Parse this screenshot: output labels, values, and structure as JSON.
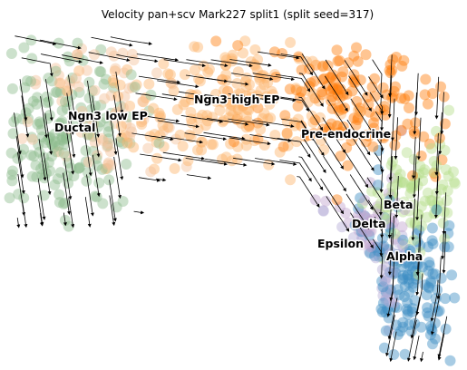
{
  "chart_data": {
    "type": "scatter",
    "title": "Velocity pan+scv Mark227 split1 (split seed=317)",
    "xlabel": "",
    "ylabel": "",
    "axes_visible": false,
    "legend": "on-data",
    "overlay": "velocity streamlines",
    "series": [
      {
        "name": "Ductal",
        "color": "#8fbc8f"
      },
      {
        "name": "Ngn3 low EP",
        "color": "#f4c19a"
      },
      {
        "name": "Ngn3 high EP",
        "color": "#fdb46b"
      },
      {
        "name": "Pre-endocrine",
        "color": "#ff7f0e"
      },
      {
        "name": "Beta",
        "color": "#b5de8c"
      },
      {
        "name": "Delta",
        "color": "#c2a5cf"
      },
      {
        "name": "Epsilon",
        "color": "#b5aed6"
      },
      {
        "name": "Alpha",
        "color": "#3d8ec4"
      }
    ]
  }
}
